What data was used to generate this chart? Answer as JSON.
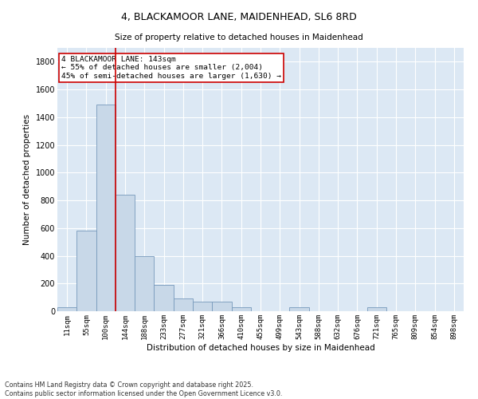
{
  "title_line1": "4, BLACKAMOOR LANE, MAIDENHEAD, SL6 8RD",
  "title_line2": "Size of property relative to detached houses in Maidenhead",
  "xlabel": "Distribution of detached houses by size in Maidenhead",
  "ylabel": "Number of detached properties",
  "bar_color": "#c8d8e8",
  "bar_edge_color": "#7799bb",
  "background_color": "#dce8f4",
  "grid_color": "#ffffff",
  "categories": [
    "11sqm",
    "55sqm",
    "100sqm",
    "144sqm",
    "188sqm",
    "233sqm",
    "277sqm",
    "321sqm",
    "366sqm",
    "410sqm",
    "455sqm",
    "499sqm",
    "543sqm",
    "588sqm",
    "632sqm",
    "676sqm",
    "721sqm",
    "765sqm",
    "809sqm",
    "854sqm",
    "898sqm"
  ],
  "values": [
    30,
    580,
    1490,
    840,
    400,
    190,
    90,
    70,
    70,
    30,
    0,
    0,
    30,
    0,
    0,
    0,
    30,
    0,
    0,
    0,
    0
  ],
  "ylim": [
    0,
    1900
  ],
  "yticks": [
    0,
    200,
    400,
    600,
    800,
    1000,
    1200,
    1400,
    1600,
    1800
  ],
  "vline_x": 2.5,
  "annotation_title": "4 BLACKAMOOR LANE: 143sqm",
  "annotation_line2": "← 55% of detached houses are smaller (2,004)",
  "annotation_line3": "45% of semi-detached houses are larger (1,630) →",
  "annotation_box_color": "#ffffff",
  "annotation_box_edge": "#cc0000",
  "vline_color": "#cc0000",
  "footer_line1": "Contains HM Land Registry data © Crown copyright and database right 2025.",
  "footer_line2": "Contains public sector information licensed under the Open Government Licence v3.0."
}
